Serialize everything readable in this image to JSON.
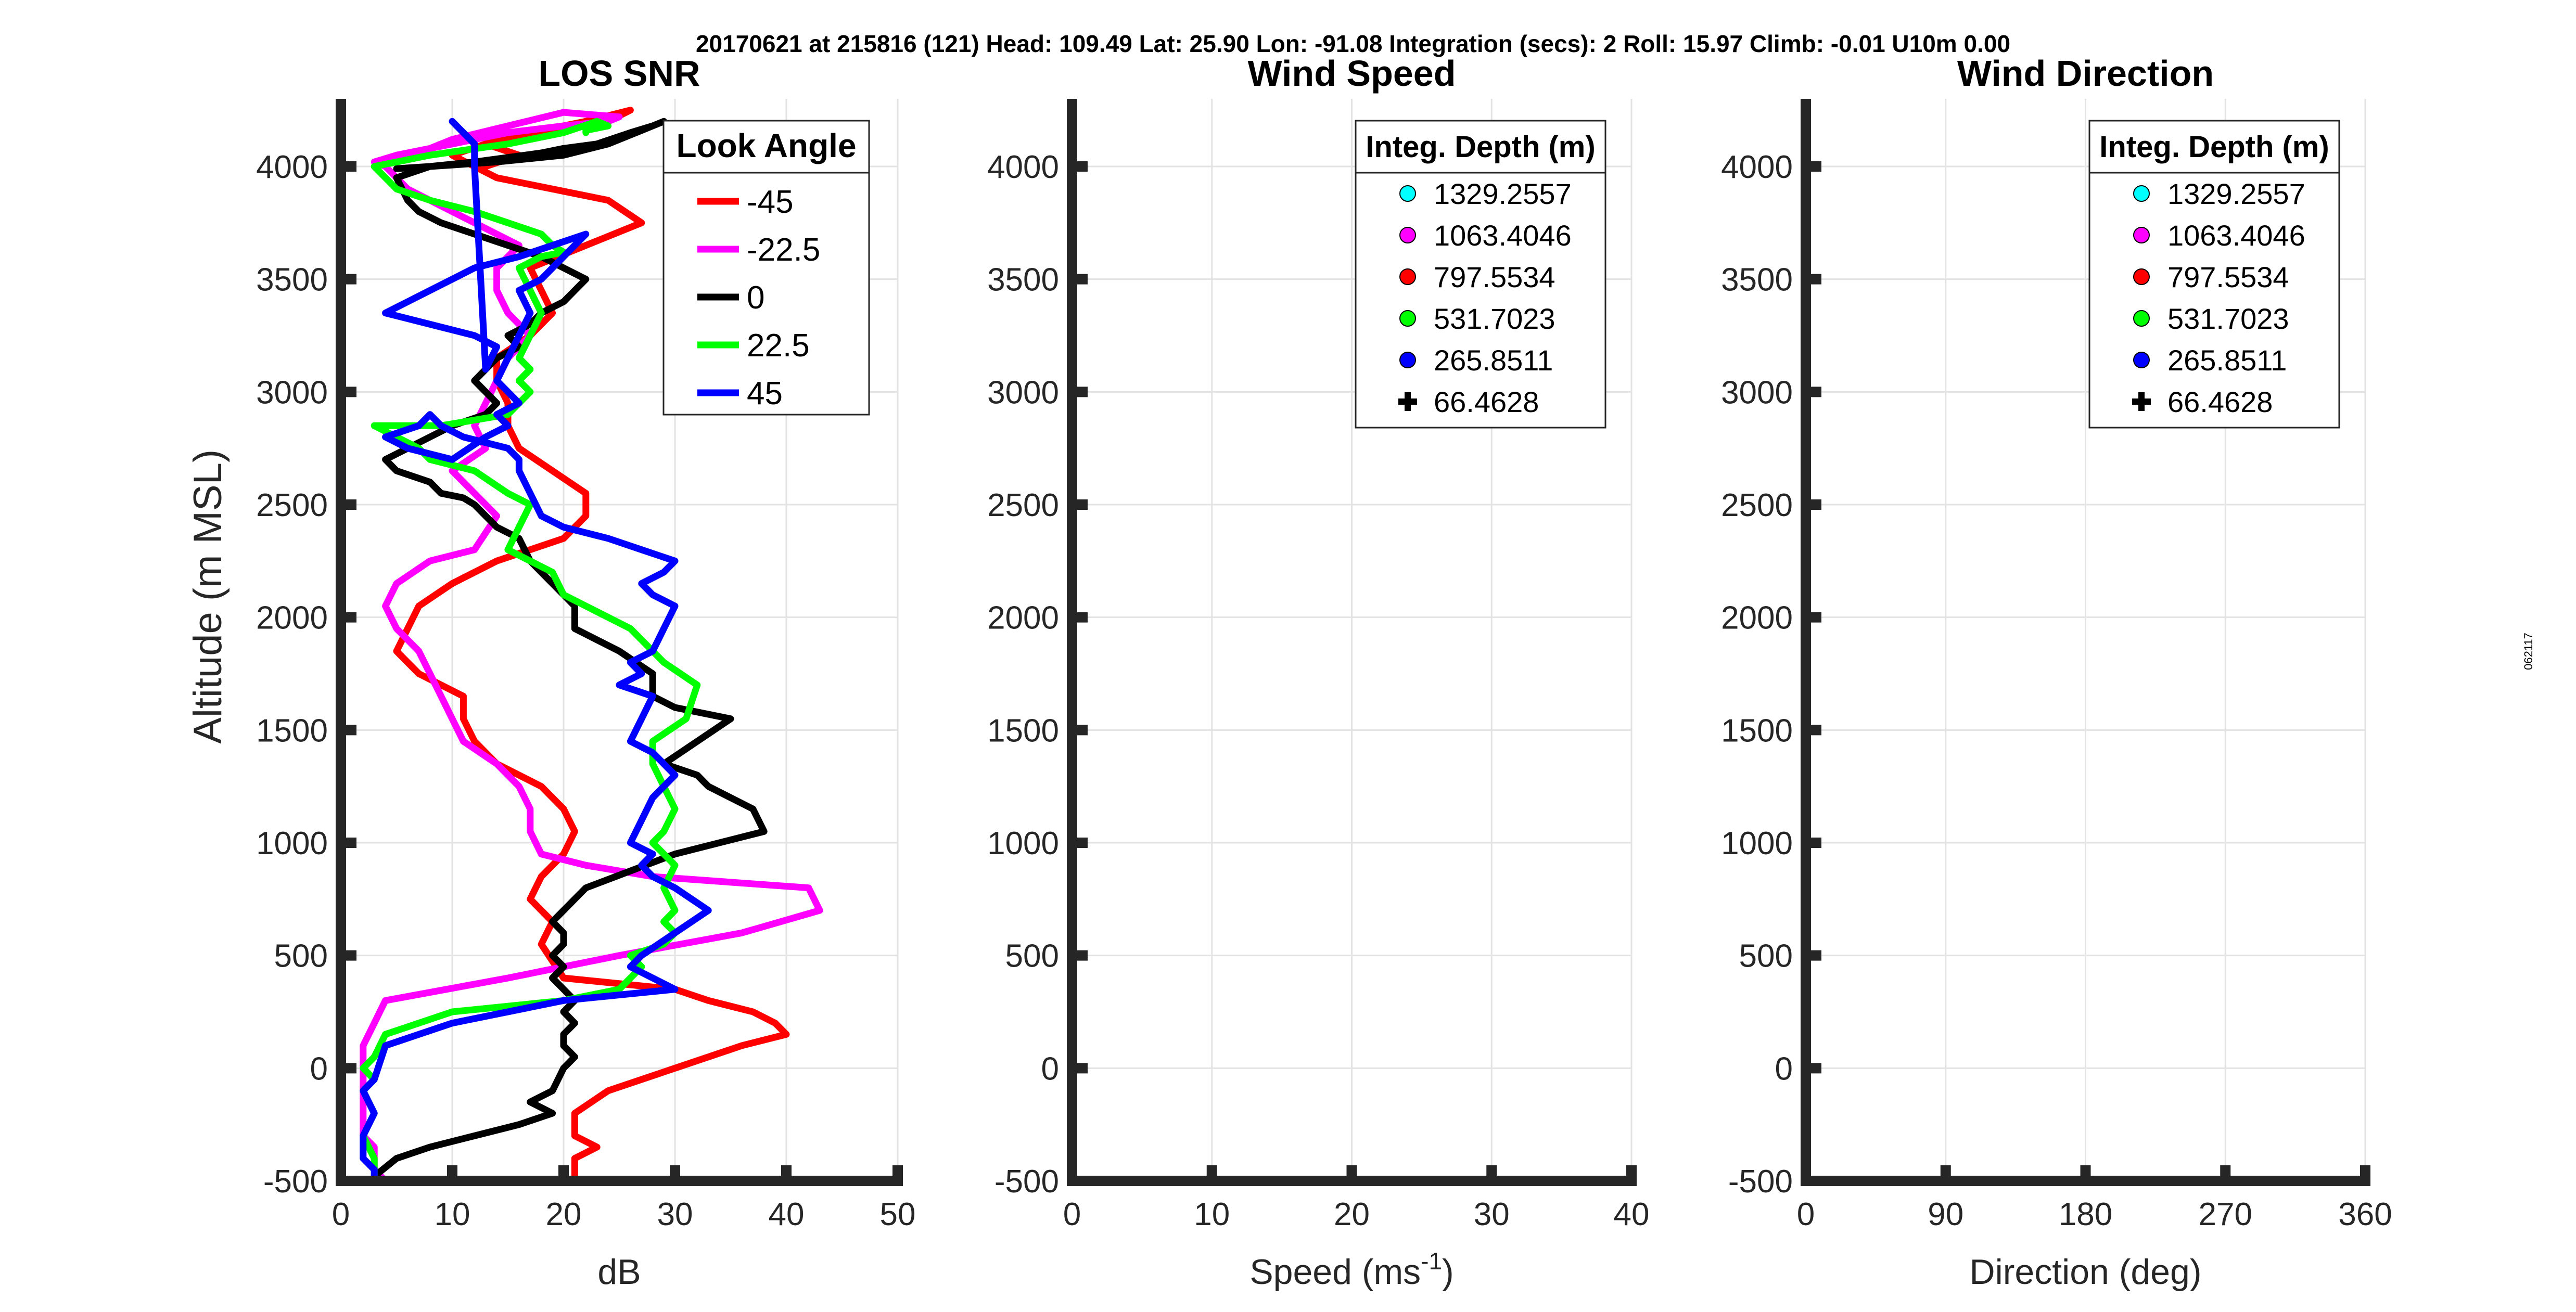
{
  "header": {
    "info": "20170621 at 215816 (121)  Head: 109.49  Lat: 25.90  Lon: -91.08  Integration (secs): 2  Roll: 15.97  Climb: -0.01  U10m 0.00"
  },
  "side_label": "062117",
  "chart_data": [
    {
      "type": "line",
      "title": "LOS SNR",
      "xlabel": "dB",
      "ylabel": "Altitude (m MSL)",
      "xlim": [
        0,
        50
      ],
      "ylim": [
        -500,
        4300
      ],
      "xticks": [
        0,
        10,
        20,
        30,
        40,
        50
      ],
      "yticks": [
        -500,
        0,
        500,
        1000,
        1500,
        2000,
        2500,
        3000,
        3500,
        4000
      ],
      "grid": true,
      "legend": {
        "title": "Look Angle",
        "position": "top-right"
      },
      "series": [
        {
          "name": "-45",
          "color": "#ff0000",
          "x": [
            21,
            21,
            23,
            21,
            21,
            24,
            30,
            33,
            36,
            40,
            39,
            37,
            33,
            30,
            20,
            18,
            19,
            17,
            18,
            20,
            21,
            20,
            18,
            14,
            12,
            11,
            11,
            7,
            5,
            6,
            7,
            10,
            14,
            20,
            22,
            22,
            19,
            16,
            15,
            15,
            14,
            14,
            17,
            19,
            18,
            17,
            22,
            27,
            24,
            14,
            12,
            10,
            13,
            16,
            24,
            26,
            22,
            17,
            13,
            16,
            13
          ],
          "y": [
            -500,
            -400,
            -350,
            -300,
            -200,
            -100,
            0,
            50,
            100,
            150,
            200,
            250,
            300,
            350,
            400,
            550,
            650,
            750,
            850,
            950,
            1050,
            1150,
            1250,
            1350,
            1450,
            1550,
            1650,
            1750,
            1850,
            1950,
            2050,
            2150,
            2250,
            2350,
            2450,
            2550,
            2650,
            2750,
            2850,
            2950,
            3050,
            3150,
            3250,
            3350,
            3450,
            3550,
            3650,
            3750,
            3850,
            3950,
            4000,
            4050,
            4100,
            4150,
            4200,
            4250,
            4200,
            4150,
            4100,
            4050,
            4000
          ]
        },
        {
          "name": "-22.5",
          "color": "#ff00ff",
          "x": [
            4,
            3,
            3,
            3,
            2,
            2,
            2,
            2,
            2,
            3,
            4,
            15,
            25,
            36,
            43,
            42,
            28,
            22,
            18,
            17,
            17,
            16,
            14,
            11,
            10,
            9,
            8,
            7,
            5,
            4,
            5,
            8,
            12,
            14,
            12,
            10,
            13,
            12,
            13,
            14,
            15,
            17,
            15,
            14,
            14,
            16,
            14,
            12,
            10,
            8,
            6,
            5,
            4,
            3,
            5,
            10,
            15,
            20,
            24,
            25,
            20,
            10,
            5
          ],
          "y": [
            -500,
            -450,
            -400,
            -350,
            -300,
            -200,
            -100,
            0,
            100,
            200,
            300,
            400,
            500,
            600,
            700,
            800,
            850,
            900,
            950,
            1050,
            1150,
            1250,
            1350,
            1450,
            1550,
            1650,
            1750,
            1850,
            1950,
            2050,
            2150,
            2250,
            2300,
            2450,
            2550,
            2650,
            2750,
            2850,
            2950,
            3050,
            3150,
            3250,
            3350,
            3450,
            3550,
            3650,
            3700,
            3750,
            3800,
            3850,
            3900,
            3950,
            4000,
            4020,
            4050,
            4100,
            4150,
            4180,
            4200,
            4220,
            4240,
            4120,
            4020
          ]
        },
        {
          "name": "0",
          "color": "#000000",
          "x": [
            3,
            5,
            8,
            12,
            16,
            19,
            17,
            19,
            20,
            21,
            20,
            20,
            21,
            20,
            21,
            20,
            19,
            20,
            19,
            20,
            20,
            19,
            20,
            21,
            22,
            30,
            38,
            37,
            33,
            32,
            29,
            32,
            35,
            30,
            28,
            28,
            25,
            21,
            21,
            19,
            17,
            16,
            14,
            13,
            12,
            11,
            9,
            8,
            5,
            4,
            6,
            8,
            10,
            13,
            14,
            13,
            12,
            13,
            14,
            16,
            15,
            17,
            18,
            20,
            21,
            22,
            20,
            18,
            15,
            12,
            9,
            7,
            6,
            5,
            8,
            12,
            15,
            18,
            20,
            23,
            26,
            28,
            29,
            27,
            24,
            20,
            14,
            8,
            5
          ],
          "y": [
            -480,
            -400,
            -350,
            -300,
            -250,
            -200,
            -150,
            -100,
            0,
            50,
            100,
            150,
            200,
            250,
            300,
            350,
            400,
            450,
            500,
            550,
            600,
            650,
            700,
            750,
            800,
            950,
            1050,
            1150,
            1250,
            1300,
            1350,
            1450,
            1550,
            1600,
            1650,
            1750,
            1850,
            1950,
            2050,
            2150,
            2250,
            2350,
            2400,
            2450,
            2500,
            2530,
            2550,
            2600,
            2650,
            2700,
            2750,
            2800,
            2850,
            2900,
            2950,
            3000,
            3050,
            3100,
            3150,
            3200,
            3250,
            3300,
            3350,
            3400,
            3450,
            3500,
            3550,
            3600,
            3650,
            3700,
            3750,
            3800,
            3850,
            3950,
            4000,
            4020,
            4040,
            4060,
            4080,
            4100,
            4150,
            4180,
            4200,
            4160,
            4100,
            4050,
            4020,
            4000,
            3990
          ]
        },
        {
          "name": "22.5",
          "color": "#00ff00",
          "x": [
            3,
            3,
            2,
            3,
            2,
            3,
            2,
            3,
            4,
            10,
            20,
            25,
            26,
            27,
            26,
            29,
            30,
            29,
            30,
            29,
            30,
            28,
            29,
            30,
            29,
            28,
            28,
            31,
            32,
            29,
            26,
            22,
            20,
            19,
            17,
            15,
            16,
            17,
            15,
            12,
            8,
            7,
            5,
            3,
            9,
            15,
            17,
            16,
            17,
            16,
            17,
            18,
            17,
            16,
            18,
            20,
            19,
            18,
            15,
            12,
            8,
            5,
            3,
            8,
            15,
            20,
            23,
            24,
            22,
            22
          ],
          "y": [
            -500,
            -400,
            -300,
            -200,
            -100,
            -50,
            0,
            50,
            150,
            250,
            300,
            350,
            400,
            450,
            500,
            550,
            600,
            650,
            700,
            800,
            900,
            1000,
            1050,
            1150,
            1250,
            1350,
            1450,
            1550,
            1700,
            1800,
            1950,
            2050,
            2100,
            2200,
            2250,
            2300,
            2400,
            2500,
            2550,
            2650,
            2700,
            2750,
            2800,
            2850,
            2850,
            2900,
            3000,
            3050,
            3100,
            3150,
            3250,
            3350,
            3450,
            3550,
            3600,
            3620,
            3650,
            3700,
            3750,
            3800,
            3850,
            3900,
            4000,
            4050,
            4100,
            4150,
            4200,
            4180,
            4160,
            4150
          ]
        },
        {
          "name": "45",
          "color": "#0000ff",
          "x": [
            3,
            3,
            2,
            2,
            3,
            2,
            3,
            4,
            10,
            20,
            30,
            28,
            26,
            27,
            30,
            33,
            30,
            28,
            27,
            28,
            26,
            27,
            28,
            30,
            29,
            28,
            26,
            27,
            28,
            25,
            27,
            26,
            28,
            29,
            30,
            28,
            27,
            29,
            30,
            27,
            24,
            20,
            18,
            17,
            16,
            16,
            15,
            11,
            9,
            8,
            7,
            4,
            6,
            10,
            13,
            15,
            14,
            16,
            14,
            15,
            16,
            17,
            16,
            18,
            20,
            22,
            19,
            16,
            12,
            10,
            8,
            6,
            4,
            8,
            12,
            14,
            13,
            12,
            12,
            11,
            10
          ],
          "y": [
            -500,
            -450,
            -400,
            -300,
            -200,
            -100,
            -50,
            100,
            200,
            300,
            350,
            400,
            450,
            500,
            600,
            700,
            800,
            850,
            900,
            950,
            1000,
            1100,
            1200,
            1300,
            1350,
            1400,
            1450,
            1550,
            1650,
            1700,
            1750,
            1800,
            1850,
            1950,
            2050,
            2100,
            2150,
            2200,
            2250,
            2300,
            2350,
            2400,
            2450,
            2550,
            2650,
            2700,
            2750,
            2800,
            2850,
            2900,
            2850,
            2800,
            2750,
            2700,
            2800,
            2850,
            2900,
            2950,
            3050,
            3150,
            3250,
            3350,
            3450,
            3500,
            3600,
            3700,
            3650,
            3600,
            3550,
            3500,
            3450,
            3400,
            3350,
            3300,
            3250,
            3200,
            3100,
            4000,
            4100,
            4150,
            4200
          ]
        }
      ]
    },
    {
      "type": "scatter",
      "title": "Wind Speed",
      "xlabel": "Speed (ms",
      "xlabel_sup": "-1",
      "xlabel_suffix": ")",
      "xlim": [
        0,
        40
      ],
      "ylim": [
        -500,
        4300
      ],
      "xticks": [
        0,
        10,
        20,
        30,
        40
      ],
      "yticks": [
        -500,
        0,
        500,
        1000,
        1500,
        2000,
        2500,
        3000,
        3500,
        4000
      ],
      "grid": true,
      "legend": {
        "title": "Integ. Depth (m)",
        "position": "top-right"
      },
      "series": [
        {
          "name": "1329.2557",
          "color": "#00ffff",
          "marker": "circle",
          "x": [],
          "y": []
        },
        {
          "name": "1063.4046",
          "color": "#ff00ff",
          "marker": "circle",
          "x": [],
          "y": []
        },
        {
          "name": "797.5534",
          "color": "#ff0000",
          "marker": "circle",
          "x": [],
          "y": []
        },
        {
          "name": "531.7023",
          "color": "#00ff00",
          "marker": "circle",
          "x": [],
          "y": []
        },
        {
          "name": "265.8511",
          "color": "#0000ff",
          "marker": "circle",
          "x": [],
          "y": []
        },
        {
          "name": "66.4628",
          "color": "#000000",
          "marker": "plus",
          "x": [],
          "y": []
        }
      ]
    },
    {
      "type": "scatter",
      "title": "Wind Direction",
      "xlabel": "Direction (deg)",
      "xlim": [
        0,
        360
      ],
      "ylim": [
        -500,
        4300
      ],
      "xticks": [
        0,
        90,
        180,
        270,
        360
      ],
      "yticks": [
        -500,
        0,
        500,
        1000,
        1500,
        2000,
        2500,
        3000,
        3500,
        4000
      ],
      "grid": true,
      "legend": {
        "title": "Integ. Depth (m)",
        "position": "top-right"
      },
      "series": [
        {
          "name": "1329.2557",
          "color": "#00ffff",
          "marker": "circle",
          "x": [],
          "y": []
        },
        {
          "name": "1063.4046",
          "color": "#ff00ff",
          "marker": "circle",
          "x": [],
          "y": []
        },
        {
          "name": "797.5534",
          "color": "#ff0000",
          "marker": "circle",
          "x": [],
          "y": []
        },
        {
          "name": "531.7023",
          "color": "#00ff00",
          "marker": "circle",
          "x": [],
          "y": []
        },
        {
          "name": "265.8511",
          "color": "#0000ff",
          "marker": "circle",
          "x": [],
          "y": []
        },
        {
          "name": "66.4628",
          "color": "#000000",
          "marker": "plus",
          "x": [],
          "y": []
        }
      ]
    }
  ]
}
